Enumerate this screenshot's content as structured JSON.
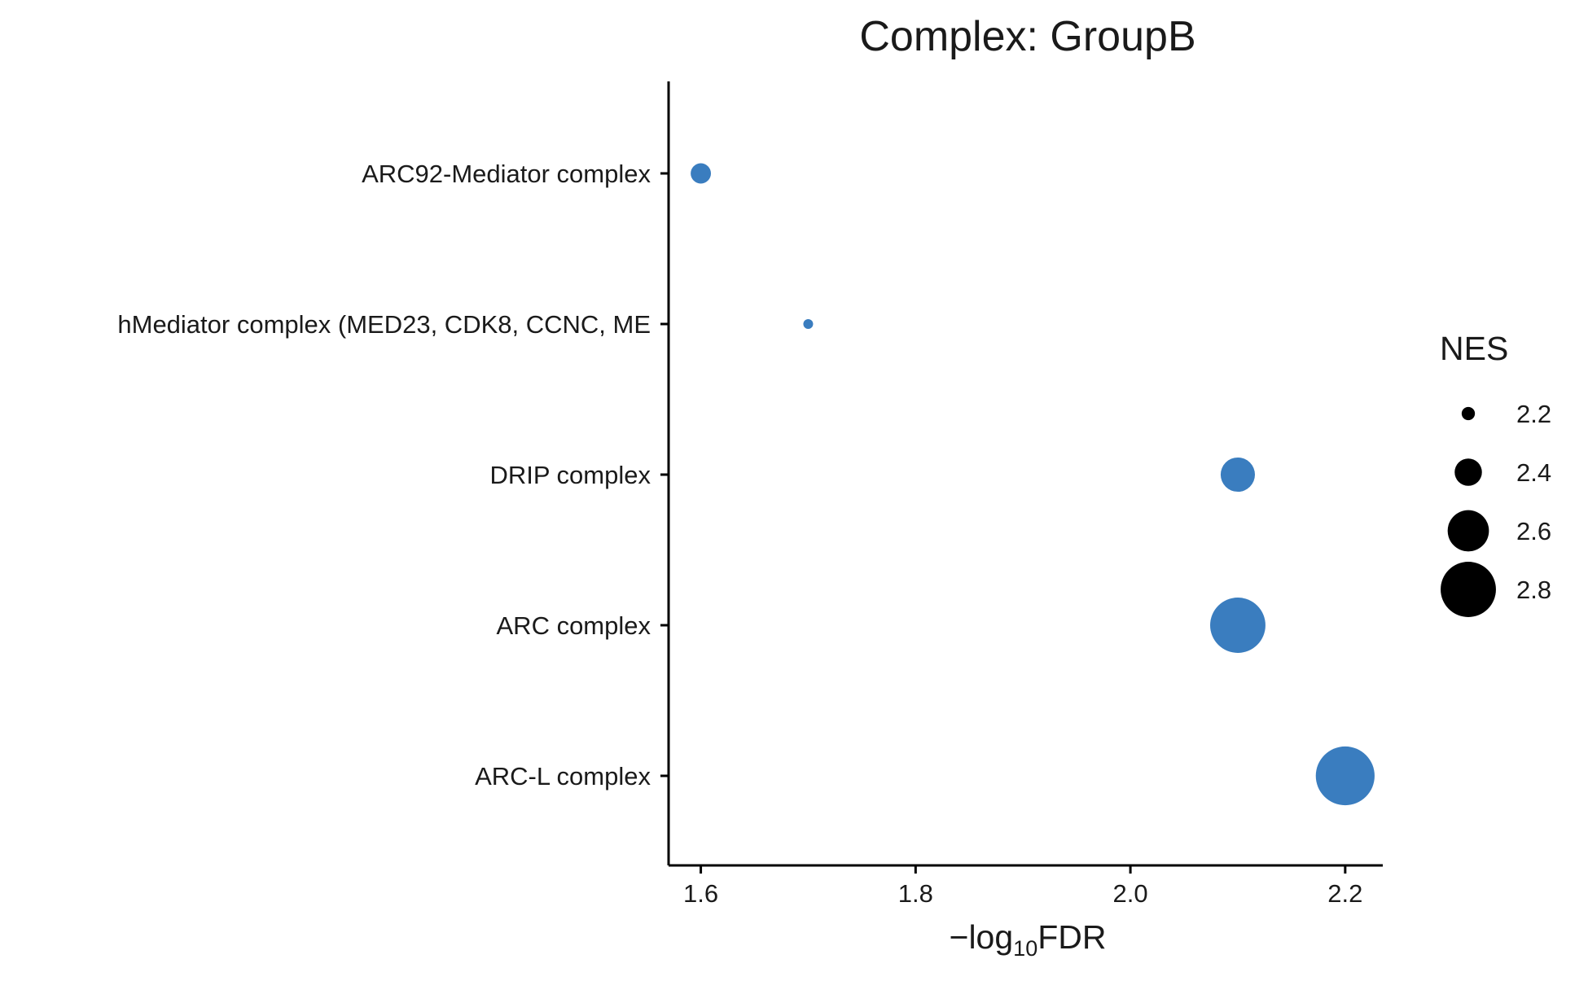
{
  "chart_data": {
    "type": "scatter",
    "title": "Complex: GroupB",
    "xlabel": "−log",
    "xlabel_subscript": "10",
    "xlabel_suffix": "FDR",
    "ylabel": "",
    "xlim": [
      1.57,
      2.235
    ],
    "x_ticks": [
      1.6,
      1.8,
      2.0,
      2.2
    ],
    "x_tick_labels": [
      "1.6",
      "1.8",
      "2.0",
      "2.2"
    ],
    "categories": [
      "ARC92-Mediator complex",
      "hMediator complex (MED23, CDK8, CCNC, ME",
      "DRIP complex",
      "ARC complex",
      "ARC-L complex"
    ],
    "points": [
      {
        "category": "ARC92-Mediator complex",
        "x": 1.6,
        "nes": 2.3
      },
      {
        "category": "hMediator complex (MED23, CDK8, CCNC, ME",
        "x": 1.7,
        "nes": 2.15
      },
      {
        "category": "DRIP complex",
        "x": 2.1,
        "nes": 2.5
      },
      {
        "category": "ARC complex",
        "x": 2.1,
        "nes": 2.8
      },
      {
        "category": "ARC-L complex",
        "x": 2.2,
        "nes": 2.85
      }
    ],
    "point_color": "#3A7DBF",
    "grid": false,
    "legend": {
      "title": "NES",
      "placement": "right",
      "color": "#000000",
      "entries": [
        {
          "label": "2.2",
          "value": 2.2
        },
        {
          "label": "2.4",
          "value": 2.4
        },
        {
          "label": "2.6",
          "value": 2.6
        },
        {
          "label": "2.8",
          "value": 2.8
        }
      ]
    }
  }
}
